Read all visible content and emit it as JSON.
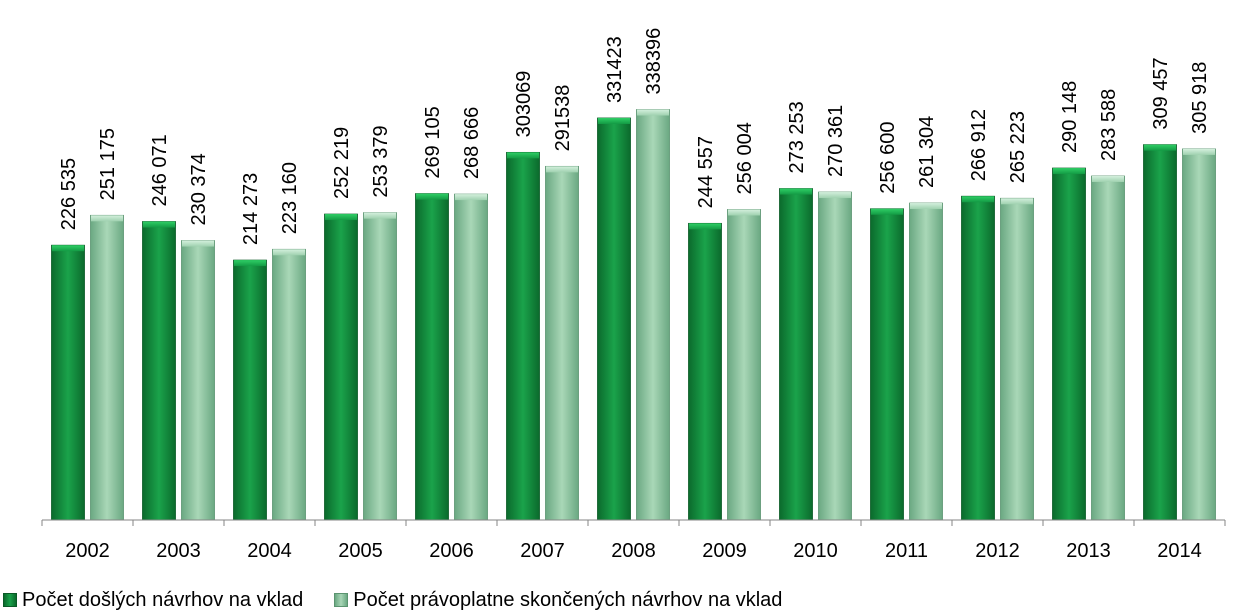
{
  "chart_data": {
    "type": "bar",
    "title": "",
    "xlabel": "",
    "ylabel": "",
    "ylim": [
      0,
      360000
    ],
    "grid": false,
    "legend": "bottom-left",
    "categories": [
      "2002",
      "2003",
      "2004",
      "2005",
      "2006",
      "2007",
      "2008",
      "2009",
      "2010",
      "2011",
      "2012",
      "2013",
      "2014"
    ],
    "series": [
      {
        "name": "Počet došlých návrhov na vklad",
        "color": "#109a43",
        "values": [
          226535,
          246071,
          214273,
          252219,
          269105,
          303069,
          331423,
          244557,
          273253,
          256600,
          266912,
          290148,
          309457
        ],
        "labels": [
          "226 535",
          "246 071",
          "214 273",
          "252 219",
          "269 105",
          "303069",
          "331423",
          "244 557",
          "273 253",
          "256 600",
          "266 912",
          "290 148",
          "309 457"
        ]
      },
      {
        "name": "Počet právoplatne skončených návrhov na vklad",
        "color": "#8fc7a2",
        "values": [
          251175,
          230374,
          223160,
          253379,
          268666,
          291538,
          338396,
          256004,
          270361,
          261304,
          265223,
          283588,
          305918
        ],
        "labels": [
          "251 175",
          "230 374",
          "223 160",
          "253 379",
          "268 666",
          "291538",
          "338396",
          "256 004",
          "270 361",
          "261 304",
          "265 223",
          "283 588",
          "305 918"
        ]
      }
    ]
  }
}
